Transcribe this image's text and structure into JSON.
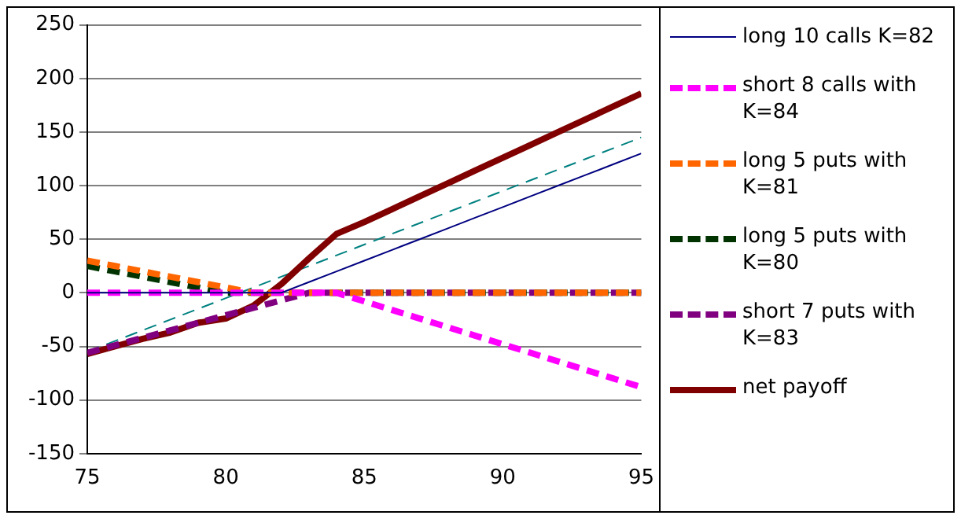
{
  "chart_data": {
    "type": "line",
    "x": [
      75,
      76,
      77,
      78,
      79,
      80,
      81,
      82,
      83,
      84,
      85,
      86,
      87,
      88,
      89,
      90,
      91,
      92,
      93,
      94,
      95
    ],
    "series": [
      {
        "name": "long 10 calls K=82",
        "color": "#000080",
        "line_style": "solid",
        "values": [
          0,
          0,
          0,
          0,
          0,
          0,
          0,
          0,
          10,
          20,
          30,
          40,
          50,
          60,
          70,
          80,
          90,
          100,
          110,
          120,
          130
        ]
      },
      {
        "name": "short 8 calls with K=84",
        "color": "#ff00ff",
        "line_style": "dashed",
        "values": [
          0,
          0,
          0,
          0,
          0,
          0,
          0,
          0,
          0,
          0,
          -8,
          -16,
          -24,
          -32,
          -40,
          -48,
          -56,
          -64,
          -72,
          -80,
          -88
        ]
      },
      {
        "name": "long 5 puts with K=81",
        "color": "#ff6600",
        "line_style": "dashed",
        "values": [
          30,
          25,
          20,
          15,
          10,
          5,
          0,
          0,
          0,
          0,
          0,
          0,
          0,
          0,
          0,
          0,
          0,
          0,
          0,
          0,
          0
        ]
      },
      {
        "name": "long 5 puts with K=80",
        "color": "#003300",
        "line_style": "dashed",
        "values": [
          25,
          20,
          15,
          10,
          5,
          0,
          0,
          0,
          0,
          0,
          0,
          0,
          0,
          0,
          0,
          0,
          0,
          0,
          0,
          0,
          0
        ]
      },
      {
        "name": "short 7 puts with K=83",
        "color": "#800080",
        "line_style": "dashed",
        "values": [
          -56,
          -49,
          -42,
          -35,
          -28,
          -21,
          -14,
          -7,
          0,
          0,
          0,
          0,
          0,
          0,
          0,
          0,
          0,
          0,
          0,
          0,
          0
        ]
      },
      {
        "name": "net payoff",
        "color": "#800000",
        "line_style": "solid",
        "values": [
          -57,
          -50,
          -43,
          -37,
          -28,
          -24,
          -12,
          8,
          32,
          55,
          66,
          78,
          90,
          102,
          114,
          126,
          138,
          150,
          162,
          174,
          186
        ]
      },
      {
        "color": "#008080",
        "line_style": "dashed",
        "values": [
          -55,
          -45,
          -35,
          -25,
          -15,
          -5,
          5,
          15,
          25,
          35,
          45,
          55,
          65,
          75,
          85,
          95,
          105,
          115,
          125,
          135,
          145
        ]
      }
    ],
    "xlim": [
      75,
      95
    ],
    "xticks": [
      75,
      80,
      85,
      90,
      95
    ],
    "ylim": [
      -150,
      250
    ],
    "yticks": [
      -150,
      -100,
      -50,
      0,
      50,
      100,
      150,
      200,
      250
    ],
    "grid": "y",
    "legend": "right",
    "marker": "none"
  }
}
